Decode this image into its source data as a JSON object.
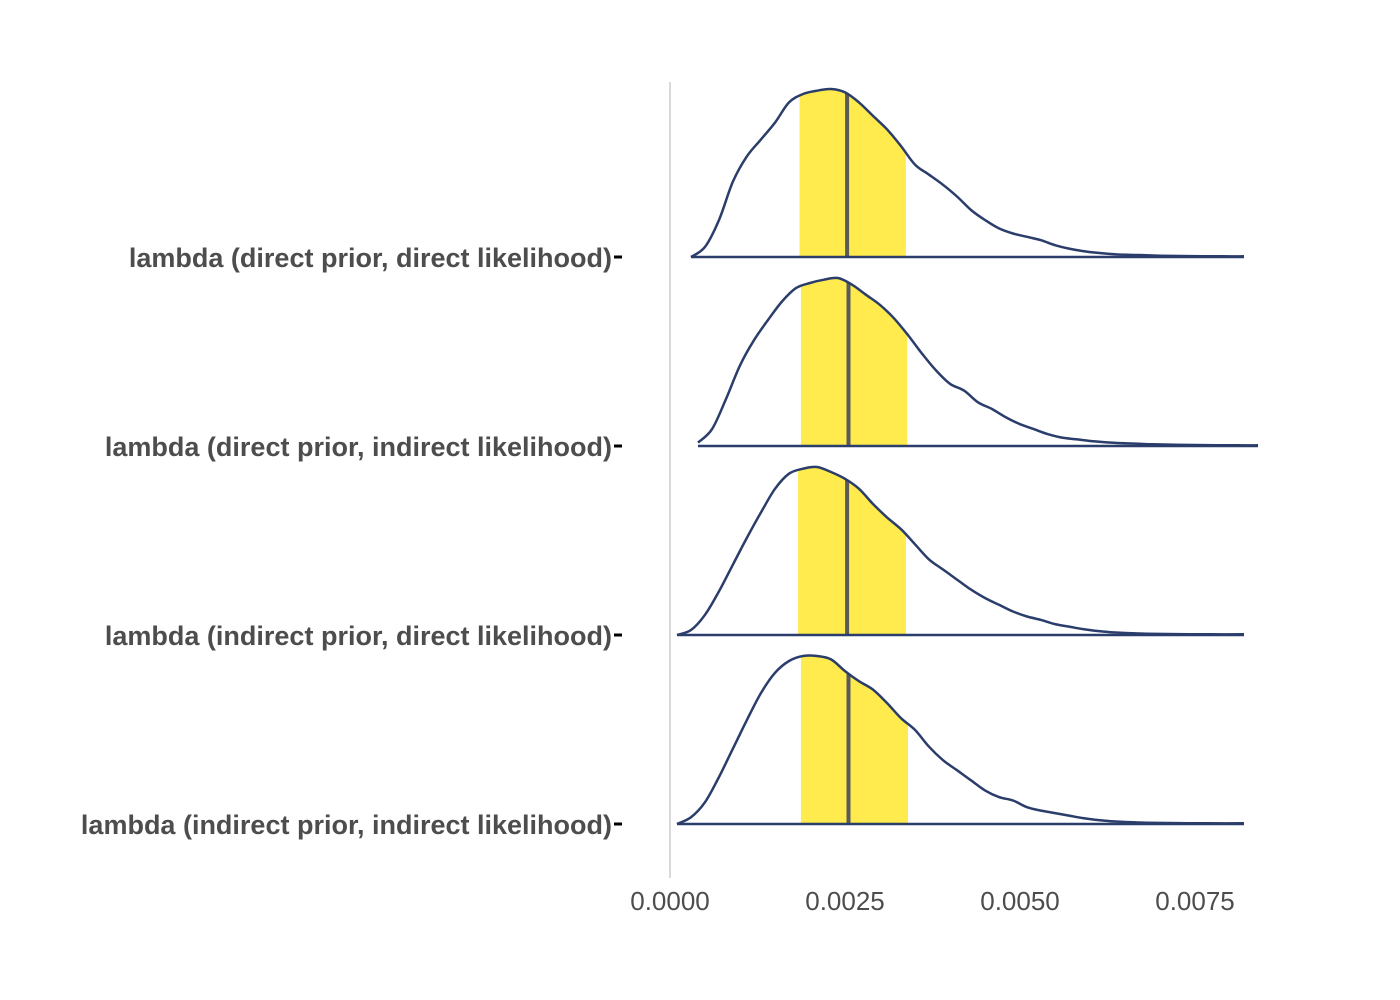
{
  "chart_data": {
    "type": "ridgeline",
    "title": "",
    "xlabel": "",
    "ylabel": "",
    "xlim": [
      0.0,
      0.0082
    ],
    "x_ticks": [
      0.0,
      0.0025,
      0.005,
      0.0075
    ],
    "x_tick_labels": [
      "0.0000",
      "0.0025",
      "0.0050",
      "0.0075"
    ],
    "colors": {
      "density_line": "#2b3d6b",
      "interval_fill": "#ffeb4d",
      "median_line": "#5a5a5a",
      "zero_line": "#d9d9d9",
      "axis_text": "#4d4d4d"
    },
    "series": [
      {
        "name": "lambda (direct prior, direct likelihood)",
        "x_min": 0.0003,
        "x_max": 0.0082,
        "median": 0.00253,
        "interval": [
          0.00185,
          0.00337
        ],
        "density_x": [
          0.0003,
          0.0005,
          0.0007,
          0.0009,
          0.0011,
          0.0013,
          0.0015,
          0.0017,
          0.0019,
          0.0021,
          0.0023,
          0.0025,
          0.0027,
          0.0029,
          0.0031,
          0.0033,
          0.0035,
          0.0037,
          0.0039,
          0.0041,
          0.0043,
          0.0045,
          0.0047,
          0.0049,
          0.0051,
          0.0053,
          0.0055,
          0.0057,
          0.0059,
          0.0061,
          0.0064,
          0.0067,
          0.007,
          0.0073,
          0.0076,
          0.0079,
          0.0082
        ],
        "density_y": [
          0.0,
          0.06,
          0.22,
          0.45,
          0.6,
          0.7,
          0.8,
          0.92,
          0.97,
          0.99,
          1.0,
          0.98,
          0.92,
          0.84,
          0.76,
          0.66,
          0.55,
          0.49,
          0.43,
          0.36,
          0.28,
          0.22,
          0.17,
          0.14,
          0.12,
          0.1,
          0.07,
          0.05,
          0.035,
          0.025,
          0.015,
          0.012,
          0.008,
          0.006,
          0.005,
          0.004,
          0.004
        ]
      },
      {
        "name": "lambda (direct prior, indirect likelihood)",
        "x_min": 0.0004,
        "x_max": 0.0084,
        "median": 0.00255,
        "interval": [
          0.00187,
          0.00339
        ],
        "density_x": [
          0.0004,
          0.0006,
          0.0008,
          0.001,
          0.0012,
          0.0014,
          0.0016,
          0.0018,
          0.002,
          0.0022,
          0.0024,
          0.0026,
          0.0028,
          0.003,
          0.0032,
          0.0034,
          0.0036,
          0.0038,
          0.004,
          0.0042,
          0.0044,
          0.0046,
          0.0048,
          0.005,
          0.0052,
          0.0054,
          0.0056,
          0.0058,
          0.006,
          0.0063,
          0.0066,
          0.0069,
          0.0072,
          0.0075,
          0.0078,
          0.0081,
          0.0084
        ],
        "density_y": [
          0.02,
          0.1,
          0.28,
          0.48,
          0.63,
          0.75,
          0.86,
          0.94,
          0.97,
          0.99,
          1.0,
          0.96,
          0.9,
          0.84,
          0.76,
          0.66,
          0.55,
          0.45,
          0.37,
          0.33,
          0.26,
          0.22,
          0.17,
          0.13,
          0.1,
          0.07,
          0.05,
          0.04,
          0.03,
          0.02,
          0.015,
          0.01,
          0.008,
          0.006,
          0.005,
          0.004,
          0.004
        ]
      },
      {
        "name": "lambda (indirect prior, direct likelihood)",
        "x_min": 0.0001,
        "x_max": 0.0082,
        "median": 0.00253,
        "interval": [
          0.00183,
          0.00337
        ],
        "density_x": [
          0.0001,
          0.0003,
          0.0005,
          0.0007,
          0.0009,
          0.0011,
          0.0013,
          0.0015,
          0.0017,
          0.0019,
          0.0021,
          0.0023,
          0.0025,
          0.0027,
          0.0029,
          0.0031,
          0.0033,
          0.0035,
          0.0037,
          0.0039,
          0.0041,
          0.0043,
          0.0045,
          0.0047,
          0.0049,
          0.0051,
          0.0053,
          0.0055,
          0.0057,
          0.0059,
          0.0062,
          0.0065,
          0.0068,
          0.0071,
          0.0074,
          0.0077,
          0.0082
        ],
        "density_y": [
          0.0,
          0.03,
          0.12,
          0.26,
          0.42,
          0.58,
          0.73,
          0.87,
          0.96,
          0.99,
          1.0,
          0.97,
          0.93,
          0.87,
          0.78,
          0.7,
          0.63,
          0.54,
          0.45,
          0.39,
          0.33,
          0.27,
          0.22,
          0.18,
          0.14,
          0.11,
          0.09,
          0.065,
          0.05,
          0.035,
          0.02,
          0.012,
          0.008,
          0.006,
          0.005,
          0.004,
          0.004
        ]
      },
      {
        "name": "lambda (indirect prior, indirect likelihood)",
        "x_min": 0.0001,
        "x_max": 0.0082,
        "median": 0.00255,
        "interval": [
          0.00187,
          0.0034
        ],
        "density_x": [
          0.0001,
          0.0003,
          0.0005,
          0.0007,
          0.0009,
          0.0011,
          0.0013,
          0.0015,
          0.0017,
          0.0019,
          0.0021,
          0.0023,
          0.0025,
          0.0027,
          0.0029,
          0.0031,
          0.0033,
          0.0035,
          0.0037,
          0.0039,
          0.0041,
          0.0043,
          0.0045,
          0.0047,
          0.0049,
          0.0051,
          0.0053,
          0.0055,
          0.0057,
          0.0059,
          0.0062,
          0.0065,
          0.0068,
          0.0071,
          0.0074,
          0.0077,
          0.0082
        ],
        "density_y": [
          0.0,
          0.04,
          0.13,
          0.28,
          0.45,
          0.62,
          0.78,
          0.9,
          0.97,
          1.0,
          1.0,
          0.98,
          0.91,
          0.85,
          0.8,
          0.72,
          0.63,
          0.56,
          0.46,
          0.38,
          0.32,
          0.26,
          0.2,
          0.16,
          0.14,
          0.1,
          0.08,
          0.065,
          0.05,
          0.035,
          0.02,
          0.012,
          0.008,
          0.006,
          0.005,
          0.004,
          0.004
        ]
      }
    ]
  }
}
